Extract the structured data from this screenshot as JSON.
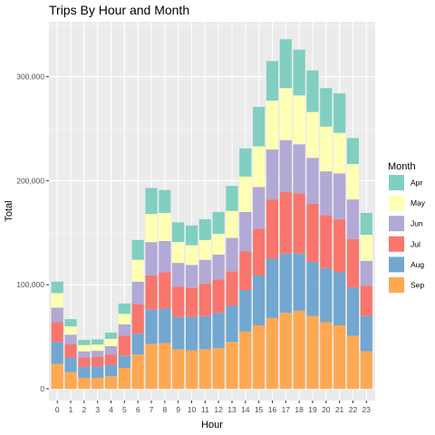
{
  "chart_data": {
    "type": "bar",
    "stacked": true,
    "title": "Trips By Hour and Month",
    "xlabel": "Hour",
    "ylabel": "Total",
    "ylim": [
      0,
      350000
    ],
    "yticks": [
      0,
      100000,
      200000,
      300000
    ],
    "ytick_labels": [
      "0",
      "100,000",
      "200,000",
      "300,000"
    ],
    "grid": true,
    "legend": {
      "title": "Month",
      "placement": "right"
    },
    "categories": [
      "0",
      "1",
      "2",
      "3",
      "4",
      "5",
      "6",
      "7",
      "8",
      "9",
      "10",
      "11",
      "12",
      "13",
      "14",
      "15",
      "16",
      "17",
      "18",
      "19",
      "20",
      "21",
      "22",
      "23"
    ],
    "series": [
      {
        "name": "Sep",
        "color": "#FFA852",
        "values": [
          24000,
          16000,
          10500,
          10500,
          12000,
          20000,
          33000,
          43000,
          44000,
          38000,
          37000,
          38000,
          39000,
          45000,
          55000,
          61000,
          68000,
          73000,
          75000,
          70000,
          64000,
          61000,
          51000,
          36000
        ]
      },
      {
        "name": "Aug",
        "color": "#72A7D1",
        "values": [
          21000,
          14000,
          10500,
          11000,
          11000,
          12000,
          20000,
          33000,
          33000,
          31000,
          32000,
          32000,
          34000,
          35000,
          40000,
          48000,
          57000,
          57000,
          55000,
          52000,
          52000,
          51000,
          46000,
          34000
        ]
      },
      {
        "name": "Jul",
        "color": "#F8766D",
        "values": [
          19000,
          13000,
          9000,
          9000,
          10000,
          19000,
          28000,
          33000,
          35000,
          29000,
          28000,
          31000,
          32000,
          33000,
          37000,
          45000,
          57000,
          59000,
          58000,
          56000,
          51000,
          51000,
          47000,
          29000
        ]
      },
      {
        "name": "Jun",
        "color": "#B2A9D6",
        "values": [
          14000,
          9000,
          6000,
          6000,
          8000,
          11000,
          22000,
          32000,
          30000,
          23000,
          22000,
          23000,
          24000,
          32000,
          38000,
          40000,
          48000,
          50000,
          47000,
          44000,
          42000,
          44000,
          38000,
          24000
        ]
      },
      {
        "name": "May",
        "color": "#FFFFB3",
        "values": [
          14000,
          8000,
          6000,
          6000,
          7000,
          10000,
          21000,
          27000,
          27000,
          20000,
          19000,
          19000,
          20000,
          26000,
          34000,
          39000,
          47000,
          50000,
          47000,
          44000,
          43000,
          39000,
          34000,
          25000
        ]
      },
      {
        "name": "Apr",
        "color": "#80CFC1",
        "values": [
          11000,
          7000,
          5000,
          5000,
          6000,
          10000,
          19000,
          25000,
          22000,
          19000,
          19000,
          20000,
          21000,
          24000,
          27000,
          38000,
          38000,
          47000,
          44000,
          40000,
          37000,
          38000,
          25000,
          21000
        ]
      }
    ],
    "legend_order": [
      "Apr",
      "May",
      "Jun",
      "Jul",
      "Aug",
      "Sep"
    ]
  }
}
